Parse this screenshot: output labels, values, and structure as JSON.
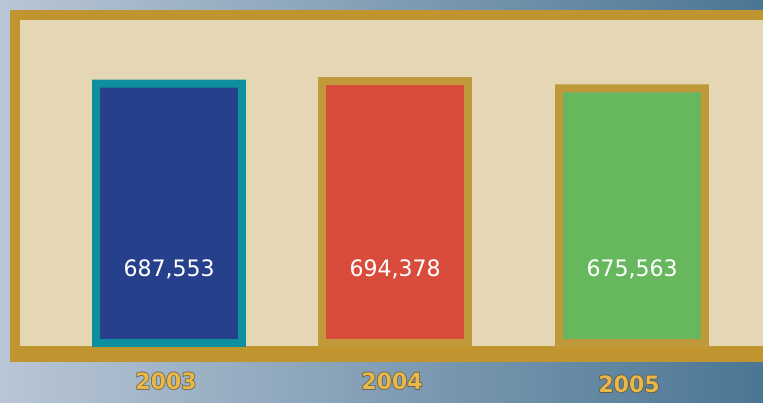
{
  "chart_data": {
    "type": "bar",
    "categories": [
      "2003",
      "2004",
      "2005"
    ],
    "values": [
      687553,
      694378,
      675563
    ],
    "value_labels": [
      "687,553",
      "694,378",
      "675,563"
    ],
    "colors": [
      "#27408b",
      "#d94b3b",
      "#66b75e"
    ],
    "edge_colors": [
      "#0e8fa0",
      "#c0993a",
      "#c0993a"
    ]
  }
}
